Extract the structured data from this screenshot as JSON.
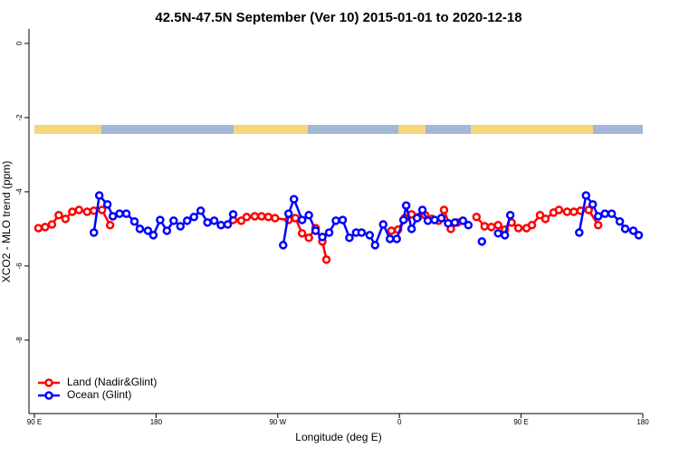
{
  "chart_data": {
    "type": "line",
    "title": "42.5N-47.5N September (Ver 10)   2015-01-01 to 2020-12-18",
    "x_label": "Longitude (deg E)",
    "y_label": "XCO2 - MLO trend (ppm)",
    "xlim": [
      90,
      540
    ],
    "xticks": [
      {
        "value": 90,
        "label": "90 E"
      },
      {
        "value": 180,
        "label": "180"
      },
      {
        "value": 270,
        "label": "90 W"
      },
      {
        "value": 360,
        "label": "0"
      },
      {
        "value": 450,
        "label": "90 E"
      },
      {
        "value": 540,
        "label": "180"
      }
    ],
    "ylim": [
      -9.98,
      0.39
    ],
    "yticks": [
      0,
      -2,
      -4,
      -6,
      -8
    ],
    "legend": "bottomleft",
    "series": [
      {
        "name": "Land (Nadir&Glint)",
        "color": "#ff0000",
        "x": [
          93,
          98,
          103,
          108,
          113,
          118,
          123,
          129,
          134,
          140,
          146,
          null,
          237,
          243,
          247,
          253,
          258,
          263,
          268,
          278,
          283,
          288,
          293,
          298,
          303,
          306,
          null,
          354,
          359,
          364,
          369,
          374,
          379,
          384,
          389,
          393,
          398,
          403,
          null,
          417,
          423,
          428,
          433,
          438,
          443,
          448,
          454,
          458,
          464,
          468,
          474,
          478,
          484,
          489,
          494,
          500,
          507
        ],
        "values": [
          -4.98,
          -4.95,
          -4.88,
          -4.63,
          -4.73,
          -4.54,
          -4.49,
          -4.54,
          -4.51,
          -4.49,
          -4.9,
          null,
          -4.76,
          -4.78,
          -4.68,
          -4.66,
          -4.66,
          -4.68,
          -4.71,
          -4.76,
          -4.71,
          -5.12,
          -5.24,
          -4.98,
          -5.34,
          -5.83,
          null,
          -5.05,
          -5.02,
          -4.71,
          -4.61,
          -4.68,
          -4.63,
          -4.73,
          -4.78,
          -4.49,
          -5.0,
          -4.83,
          null,
          -4.68,
          -4.93,
          -4.95,
          -4.9,
          -5.02,
          -4.83,
          -4.98,
          -4.98,
          -4.9,
          -4.63,
          -4.73,
          -4.56,
          -4.49,
          -4.54,
          -4.54,
          -4.51,
          -4.49,
          -4.9
        ]
      },
      {
        "name": "Ocean (Glint)",
        "color": "#0000ff",
        "x": [
          134,
          138,
          144,
          148,
          153,
          158,
          164,
          168,
          174,
          178,
          183,
          188,
          193,
          198,
          203,
          208,
          213,
          218,
          223,
          228,
          233,
          237,
          null,
          274,
          278,
          282,
          288,
          293,
          298,
          303,
          308,
          313,
          318,
          323,
          328,
          332,
          338,
          342,
          348,
          353,
          358,
          363,
          365,
          369,
          373,
          377,
          381,
          386,
          391,
          396,
          401,
          407,
          411,
          null,
          421,
          null,
          433,
          438,
          442,
          null,
          493,
          498,
          503,
          507,
          512,
          517,
          523,
          527,
          533,
          537
        ],
        "values": [
          -5.1,
          -4.1,
          -4.34,
          -4.66,
          -4.59,
          -4.59,
          -4.8,
          -5.0,
          -5.05,
          -5.17,
          -4.76,
          -5.05,
          -4.78,
          -4.93,
          -4.78,
          -4.68,
          -4.51,
          -4.83,
          -4.78,
          -4.9,
          -4.88,
          -4.61,
          null,
          -5.44,
          -4.59,
          -4.2,
          -4.76,
          -4.63,
          -5.05,
          -5.22,
          -5.1,
          -4.78,
          -4.76,
          -5.24,
          -5.1,
          -5.1,
          -5.17,
          -5.44,
          -4.88,
          -5.27,
          -5.27,
          -4.76,
          -4.37,
          -5.0,
          -4.71,
          -4.49,
          -4.78,
          -4.76,
          -4.71,
          -4.85,
          -4.83,
          -4.78,
          -4.9,
          null,
          -5.34,
          null,
          -5.12,
          -5.17,
          -4.63,
          null,
          -5.1,
          -4.1,
          -4.34,
          -4.66,
          -4.59,
          -4.59,
          -4.8,
          -5.0,
          -5.05,
          -5.17
        ]
      }
    ]
  }
}
